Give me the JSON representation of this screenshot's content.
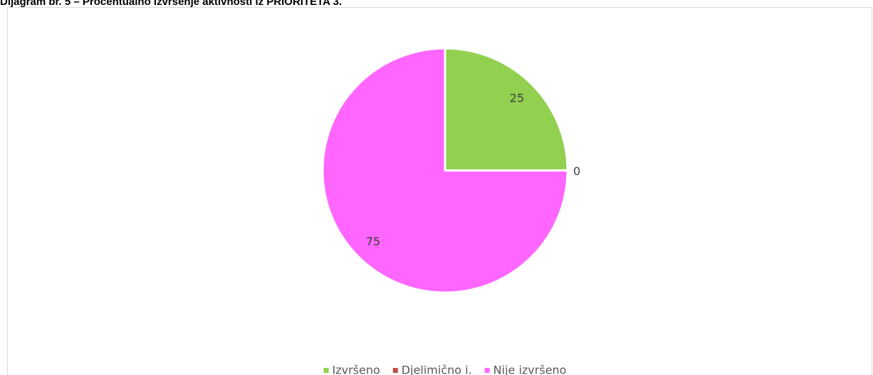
{
  "chart_data": {
    "type": "pie",
    "title": "Dijagram br. 5 – Procentualno izvršenje aktivnosti iz PRIORITETA 3.",
    "categories": [
      "Izvršeno",
      "Djelimično i.",
      "Nije izvršeno"
    ],
    "values": [
      25,
      0,
      75
    ],
    "colors": [
      "#92d050",
      "#c0504d",
      "#ff66ff"
    ],
    "legend": "bottom"
  }
}
